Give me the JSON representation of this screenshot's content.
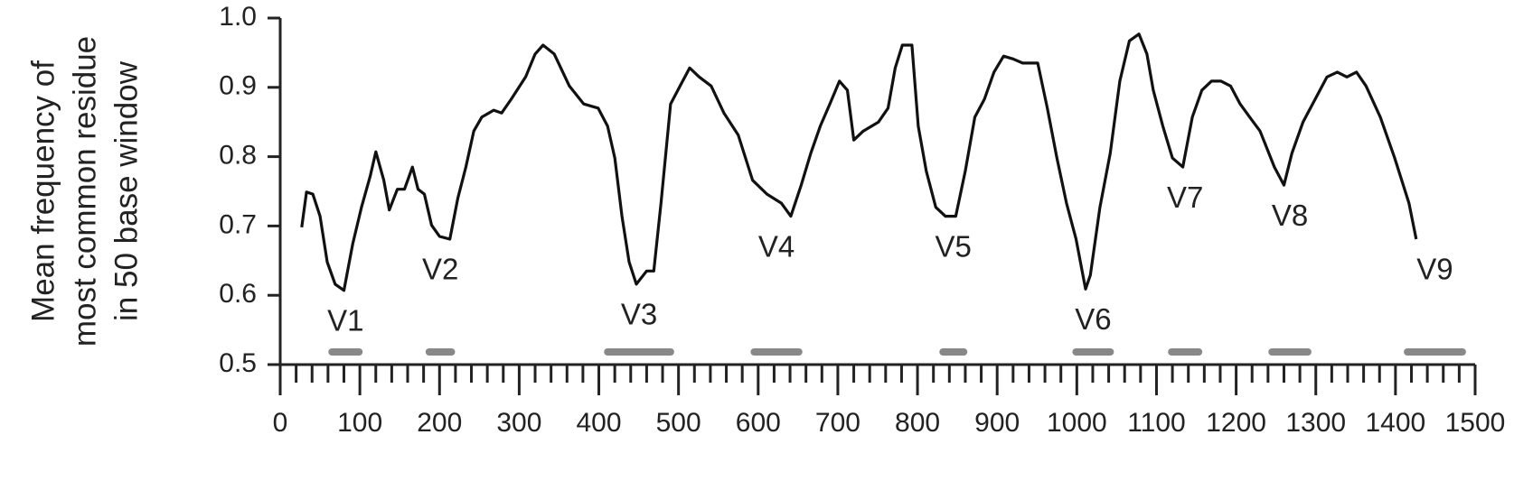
{
  "chart_data": {
    "type": "line",
    "ylabel": [
      "Mean frequency of",
      "most common residue",
      "in 50 base window"
    ],
    "x": [
      27,
      33,
      41,
      50,
      59,
      69,
      80,
      91,
      102,
      113,
      120,
      130,
      137,
      147,
      156,
      166,
      173,
      181,
      190,
      200,
      213,
      223,
      233,
      243,
      253,
      268,
      278,
      290,
      308,
      320,
      330,
      344,
      363,
      381,
      399,
      411,
      420,
      429,
      438,
      447,
      460,
      469,
      478,
      490,
      502,
      514,
      526,
      541,
      557,
      575,
      593,
      611,
      629,
      641,
      654,
      666,
      678,
      690,
      702,
      712,
      720,
      732,
      751,
      763,
      772,
      781,
      793,
      801,
      811,
      823,
      835,
      848,
      860,
      872,
      884,
      896,
      908,
      920,
      932,
      951,
      963,
      975,
      987,
      999,
      1011,
      1017,
      1029,
      1042,
      1054,
      1066,
      1078,
      1088,
      1096,
      1108,
      1120,
      1133,
      1145,
      1157,
      1169,
      1181,
      1193,
      1205,
      1217,
      1230,
      1248,
      1260,
      1270,
      1284,
      1302,
      1314,
      1327,
      1339,
      1351,
      1363,
      1381,
      1399,
      1417,
      1426
    ],
    "values": [
      0.698,
      0.749,
      0.746,
      0.714,
      0.648,
      0.616,
      0.607,
      0.674,
      0.727,
      0.772,
      0.807,
      0.766,
      0.723,
      0.753,
      0.753,
      0.785,
      0.753,
      0.746,
      0.701,
      0.685,
      0.681,
      0.74,
      0.785,
      0.837,
      0.857,
      0.867,
      0.863,
      0.883,
      0.915,
      0.948,
      0.961,
      0.948,
      0.902,
      0.876,
      0.87,
      0.844,
      0.798,
      0.714,
      0.648,
      0.616,
      0.635,
      0.635,
      0.733,
      0.876,
      0.902,
      0.928,
      0.915,
      0.902,
      0.863,
      0.831,
      0.766,
      0.746,
      0.733,
      0.714,
      0.759,
      0.805,
      0.844,
      0.876,
      0.909,
      0.896,
      0.824,
      0.837,
      0.85,
      0.87,
      0.928,
      0.961,
      0.961,
      0.844,
      0.779,
      0.727,
      0.714,
      0.714,
      0.779,
      0.857,
      0.883,
      0.922,
      0.945,
      0.941,
      0.935,
      0.935,
      0.87,
      0.798,
      0.733,
      0.681,
      0.609,
      0.629,
      0.727,
      0.805,
      0.909,
      0.967,
      0.977,
      0.948,
      0.896,
      0.844,
      0.798,
      0.785,
      0.857,
      0.896,
      0.909,
      0.909,
      0.902,
      0.876,
      0.857,
      0.837,
      0.785,
      0.759,
      0.805,
      0.85,
      0.889,
      0.915,
      0.922,
      0.915,
      0.922,
      0.902,
      0.857,
      0.798,
      0.733,
      0.681
    ],
    "color": "#111111",
    "regions": [
      {
        "label": "V1",
        "start": 65,
        "end": 99
      },
      {
        "label": "V2",
        "start": 187,
        "end": 215
      },
      {
        "label": "V3",
        "start": 411,
        "end": 490
      },
      {
        "label": "V4",
        "start": 595,
        "end": 651
      },
      {
        "label": "V5",
        "start": 832,
        "end": 858
      },
      {
        "label": "V6",
        "start": 999,
        "end": 1042
      },
      {
        "label": "V7",
        "start": 1119,
        "end": 1153
      },
      {
        "label": "V8",
        "start": 1245,
        "end": 1290
      },
      {
        "label": "V9",
        "start": 1415,
        "end": 1484
      }
    ],
    "region_color": "#888888",
    "xlim": [
      0,
      1500
    ],
    "xticks": [
      0,
      100,
      200,
      300,
      400,
      500,
      600,
      700,
      800,
      900,
      1000,
      1100,
      1200,
      1300,
      1400,
      1500
    ],
    "ylim": [
      0.5,
      1
    ],
    "yticks": [
      0.5,
      0.6,
      0.7,
      0.8,
      0.9,
      {
        "value": 1,
        "label": "1.0"
      }
    ]
  }
}
